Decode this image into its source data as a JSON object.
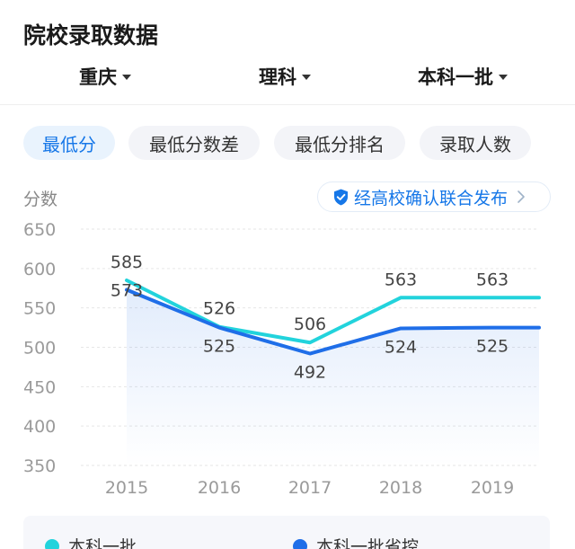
{
  "header": {
    "title": "院校录取数据"
  },
  "filters": [
    {
      "label": "重庆"
    },
    {
      "label": "理科"
    },
    {
      "label": "本科一批"
    }
  ],
  "tabs": [
    {
      "label": "最低分",
      "active": true
    },
    {
      "label": "最低分数差",
      "active": false
    },
    {
      "label": "最低分排名",
      "active": false
    },
    {
      "label": "录取人数",
      "active": false
    }
  ],
  "badge": {
    "label": "经高校确认联合发布",
    "icon": "shield-check-icon"
  },
  "colors": {
    "accent": "#1677e8",
    "series1": "#22d3dc",
    "series2": "#1f6ee8"
  },
  "chart_data": {
    "type": "line",
    "ylabel": "分数",
    "x": [
      "2015",
      "2016",
      "2017",
      "2018",
      "2019"
    ],
    "yticks": [
      "650",
      "600",
      "550",
      "500",
      "450",
      "400",
      "350"
    ],
    "ylim": [
      350,
      650
    ],
    "grid": true,
    "series": [
      {
        "name": "本科一批",
        "color": "#22d3dc",
        "values": [
          585,
          526,
          506,
          563,
          563
        ],
        "labels": [
          "585",
          "526",
          "506",
          "563",
          "563"
        ]
      },
      {
        "name": "本科一批省控",
        "color": "#1f6ee8",
        "values": [
          573,
          525,
          492,
          524,
          525
        ],
        "labels": [
          "573",
          "525",
          "492",
          "524",
          "525"
        ]
      }
    ],
    "legend": "bottom"
  }
}
